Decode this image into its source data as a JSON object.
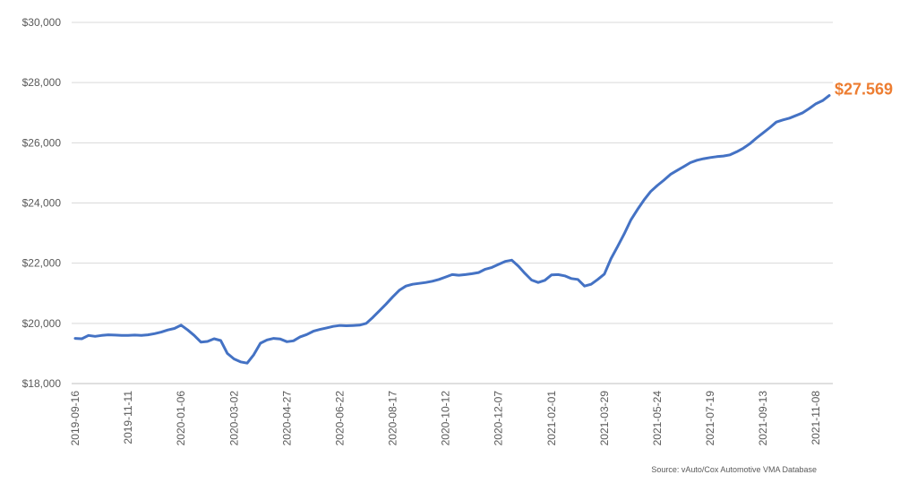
{
  "chart_data": {
    "type": "line",
    "title": "",
    "xlabel": "",
    "ylabel": "",
    "ylim": [
      18000,
      30000
    ],
    "yticks": [
      18000,
      20000,
      22000,
      24000,
      26000,
      28000,
      30000
    ],
    "ytick_labels": [
      "$18,000",
      "$20,000",
      "$22,000",
      "$24,000",
      "$26,000",
      "$28,000",
      "$30,000"
    ],
    "xtick_labels": [
      "2019-09-16",
      "2019-11-11",
      "2020-01-06",
      "2020-03-02",
      "2020-04-27",
      "2020-06-22",
      "2020-08-17",
      "2020-10-12",
      "2020-12-07",
      "2021-02-01",
      "2021-03-29",
      "2021-05-24",
      "2021-07-19",
      "2021-09-13",
      "2021-11-08"
    ],
    "xtick_index": [
      0,
      8,
      16,
      24,
      32,
      40,
      48,
      56,
      64,
      72,
      80,
      88,
      96,
      104,
      112
    ],
    "grid": true,
    "legend": "none",
    "line_color": "#4472C4",
    "end_label_color": "#ED7D31",
    "end_label": "$27.569",
    "series": [
      {
        "values": [
          19500,
          19490,
          19600,
          19570,
          19600,
          19620,
          19610,
          19600,
          19600,
          19610,
          19600,
          19620,
          19660,
          19710,
          19780,
          19830,
          19940,
          19780,
          19600,
          19380,
          19400,
          19490,
          19430,
          19000,
          18820,
          18720,
          18680,
          18960,
          19340,
          19450,
          19500,
          19480,
          19390,
          19420,
          19550,
          19630,
          19740,
          19800,
          19850,
          19900,
          19930,
          19920,
          19930,
          19940,
          20000,
          20200,
          20420,
          20640,
          20880,
          21100,
          21240,
          21300,
          21330,
          21360,
          21400,
          21460,
          21540,
          21620,
          21600,
          21620,
          21650,
          21690,
          21800,
          21860,
          21960,
          22060,
          22100,
          21900,
          21660,
          21440,
          21360,
          21430,
          21610,
          21620,
          21580,
          21490,
          21460,
          21240,
          21300,
          21460,
          21640,
          22150,
          22550,
          22970,
          23430,
          23780,
          24100,
          24380,
          24580,
          24760,
          24950,
          25080,
          25210,
          25340,
          25420,
          25470,
          25510,
          25540,
          25560,
          25600,
          25700,
          25820,
          25970,
          26160,
          26330,
          26500,
          26690,
          26760,
          26820,
          26910,
          27000,
          27140,
          27300,
          27400,
          27569
        ]
      }
    ]
  },
  "source_text": "Source: vAuto/Cox Automotive VMA Database"
}
